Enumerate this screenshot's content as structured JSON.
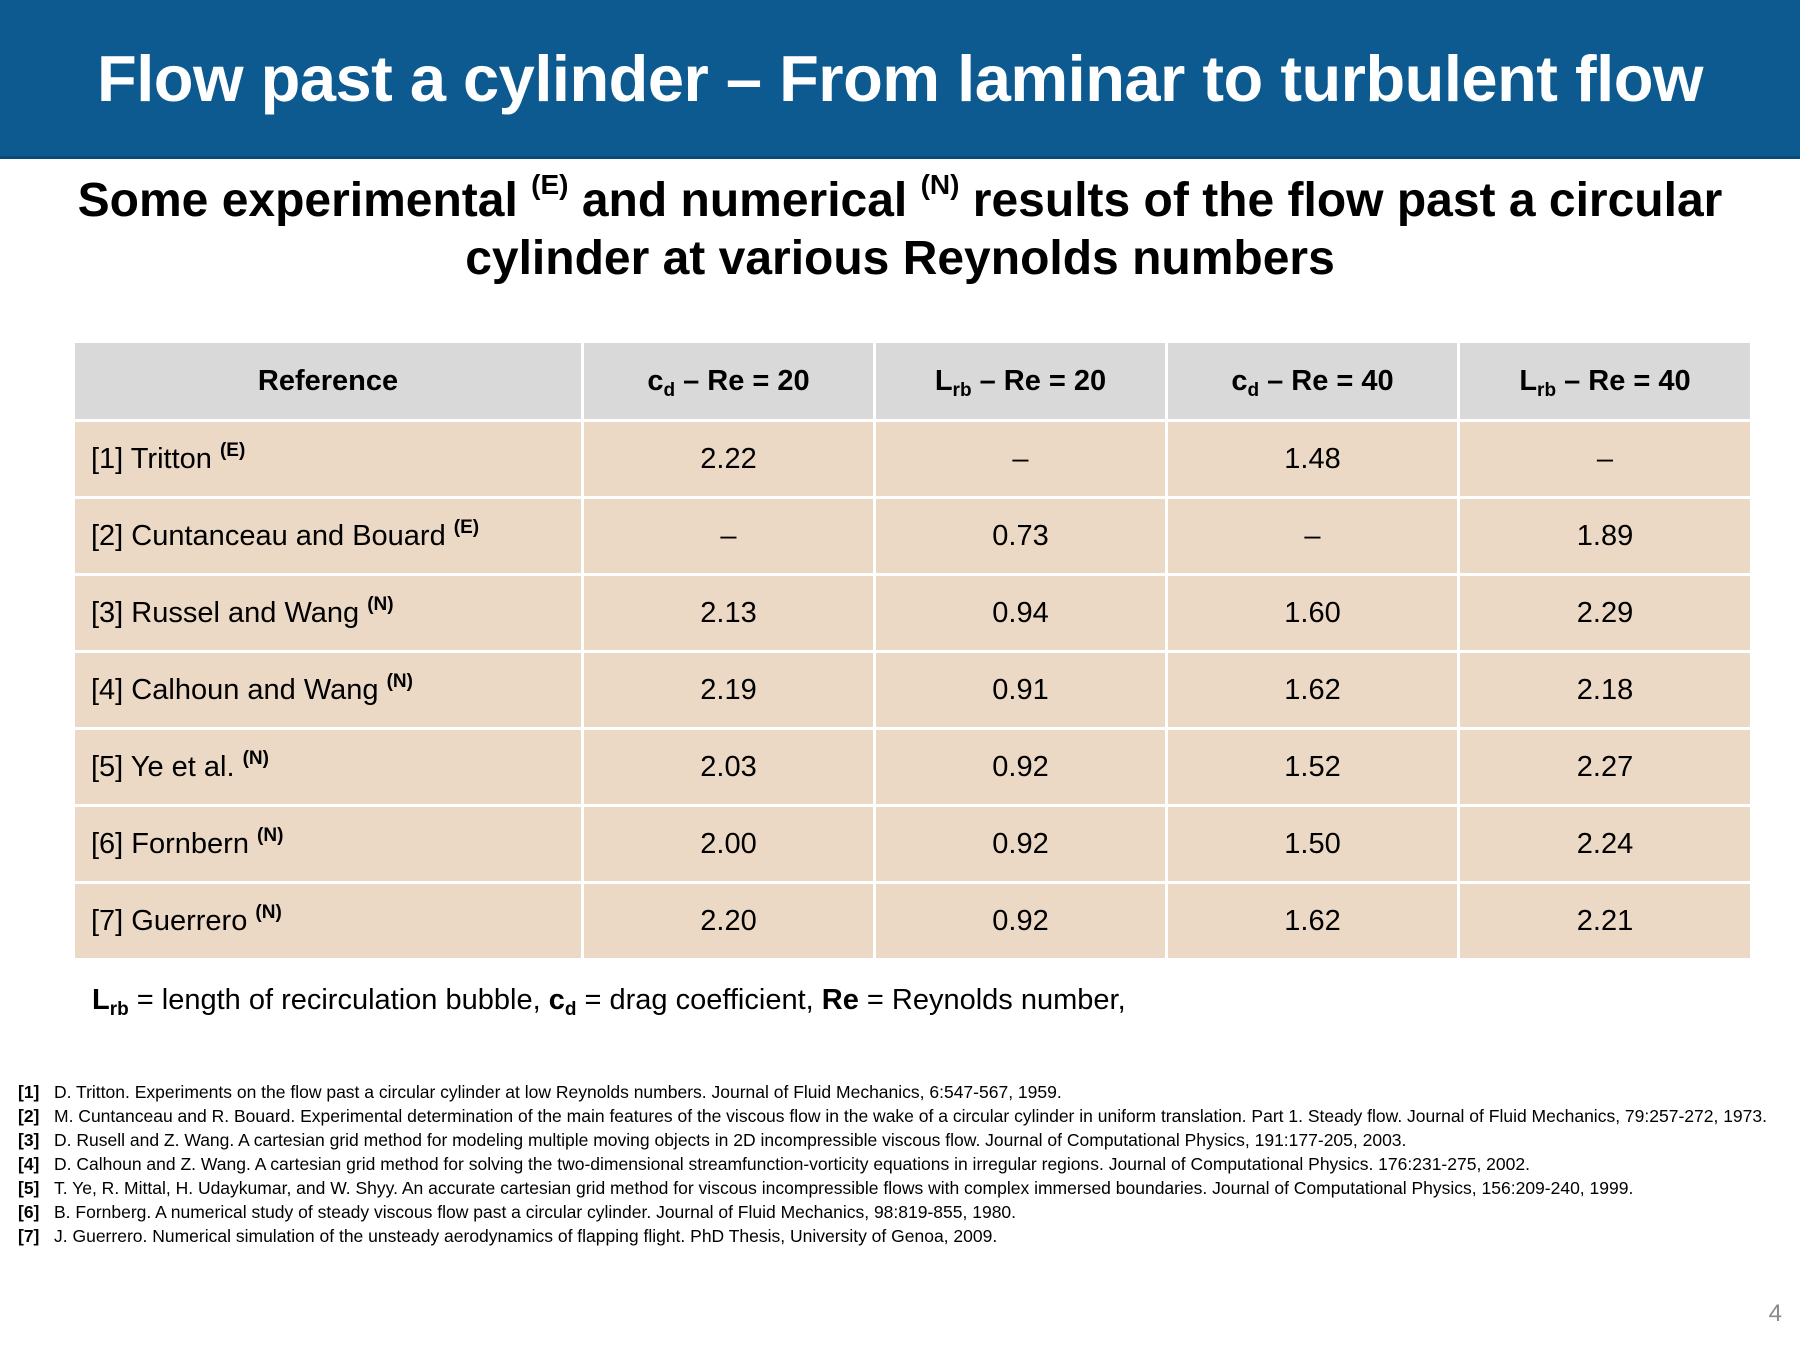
{
  "header": {
    "title": "Flow past a cylinder – From laminar to turbulent flow"
  },
  "subtitle": {
    "part1": "Some experimental ",
    "sup1": "(E)",
    "part2": " and numerical ",
    "sup2": "(N)",
    "part3": " results of the flow past a circular",
    "line2": "cylinder at various Reynolds numbers"
  },
  "table": {
    "headers": {
      "reference": "Reference",
      "cd_base": "c",
      "cd_sub": "d",
      "lrb_base": "L",
      "lrb_sub": "rb",
      "re20": " – Re = 20",
      "re40": " – Re = 40"
    },
    "rows": [
      {
        "ref": "[1] Tritton ",
        "tag": "(E)",
        "cd20": "2.22",
        "lrb20": "–",
        "cd40": "1.48",
        "lrb40": "–"
      },
      {
        "ref": "[2] Cuntanceau and Bouard ",
        "tag": "(E)",
        "cd20": "–",
        "lrb20": "0.73",
        "cd40": "–",
        "lrb40": "1.89"
      },
      {
        "ref": "[3] Russel and Wang ",
        "tag": "(N)",
        "cd20": "2.13",
        "lrb20": "0.94",
        "cd40": "1.60",
        "lrb40": "2.29"
      },
      {
        "ref": "[4] Calhoun and Wang ",
        "tag": "(N)",
        "cd20": "2.19",
        "lrb20": "0.91",
        "cd40": "1.62",
        "lrb40": "2.18"
      },
      {
        "ref": "[5] Ye et al. ",
        "tag": "(N)",
        "cd20": "2.03",
        "lrb20": "0.92",
        "cd40": "1.52",
        "lrb40": "2.27"
      },
      {
        "ref": "[6] Fornbern ",
        "tag": "(N)",
        "cd20": "2.00",
        "lrb20": "0.92",
        "cd40": "1.50",
        "lrb40": "2.24"
      },
      {
        "ref": "[7] Guerrero ",
        "tag": "(N)",
        "cd20": "2.20",
        "lrb20": "0.92",
        "cd40": "1.62",
        "lrb40": "2.21"
      }
    ]
  },
  "legend": {
    "lrb_base": "L",
    "lrb_sub": "rb",
    "lrb_text": " = length of recirculation bubble, ",
    "cd_base": "c",
    "cd_sub": "d",
    "cd_text": " = drag coefficient, ",
    "re_label": "Re",
    "re_text": " = Reynolds number,"
  },
  "references": [
    {
      "num": "[1]",
      "text": "D. Tritton.  Experiments on the flow past a circular cylinder at low Reynolds numbers.  Journal of Fluid Mechanics, 6:547-567, 1959."
    },
    {
      "num": "[2]",
      "text": "M. Cuntanceau and R. Bouard.  Experimental determination of the main features of the viscous flow in the wake of a circular cylinder in uniform translation.  Part 1.  Steady flow.  Journal of Fluid Mechanics, 79:257-272, 1973."
    },
    {
      "num": "[3]",
      "text": "D. Rusell and Z. Wang.  A cartesian grid method for modeling multiple moving objects in 2D incompressible viscous flow.  Journal of Computational Physics, 191:177-205, 2003."
    },
    {
      "num": "[4]",
      "text": "D. Calhoun and Z. Wang. A cartesian grid method for solving the two-dimensional streamfunction-vorticity equations in irregular regions.  Journal of Computational Physics. 176:231-275, 2002."
    },
    {
      "num": "[5]",
      "text": "T. Ye, R. Mittal, H. Udaykumar, and W. Shyy.  An accurate cartesian grid method for viscous incompressible flows with complex immersed boundaries.  Journal of Computational Physics, 156:209-240, 1999."
    },
    {
      "num": "[6]",
      "text": "B. Fornberg.  A numerical study of steady viscous flow past a circular cylinder.  Journal of Fluid Mechanics, 98:819-855, 1980."
    },
    {
      "num": "[7]",
      "text": "J. Guerrero.  Numerical simulation of the unsteady aerodynamics of flapping flight.  PhD Thesis, University of Genoa, 2009."
    }
  ],
  "page_number": "4"
}
